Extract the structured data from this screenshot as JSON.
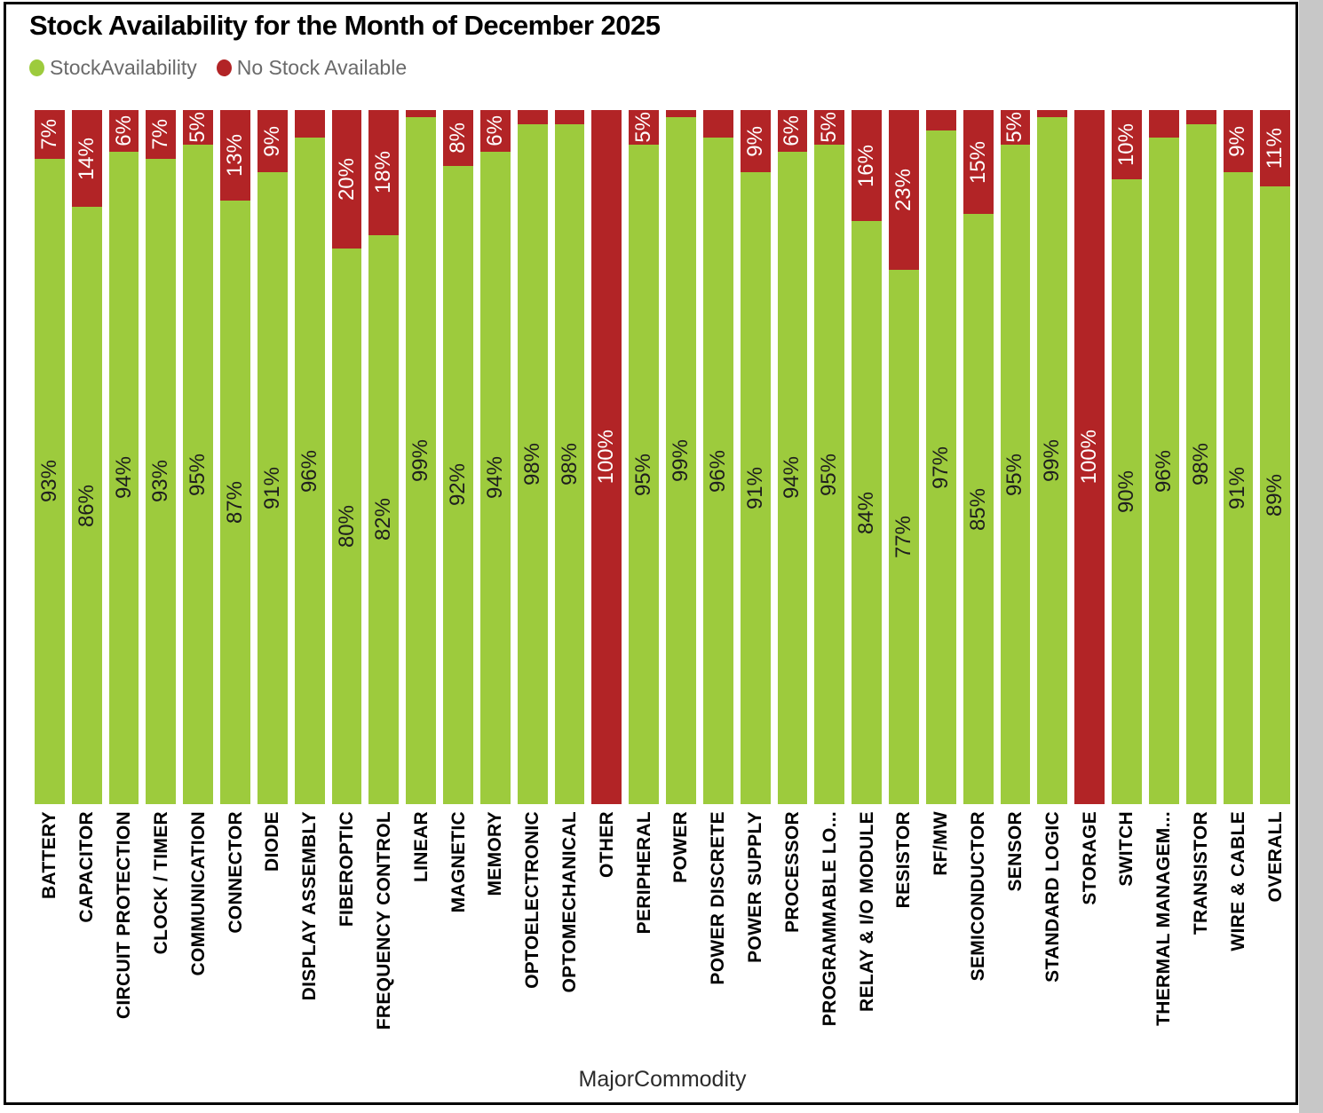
{
  "title": "Stock Availability for the Month of December 2025",
  "legend": {
    "items": [
      {
        "label": "StockAvailability",
        "color": "#9DCB3D"
      },
      {
        "label": "No Stock Available",
        "color": "#B22426"
      }
    ]
  },
  "axis": {
    "x_title": "MajorCommodity"
  },
  "chart_data": {
    "type": "bar",
    "stacked": true,
    "percent_stacked": true,
    "title": "Stock Availability for the Month of December 2025",
    "xlabel": "MajorCommodity",
    "ylabel": "",
    "ylim": [
      0,
      100
    ],
    "grid": false,
    "legend_position": "top-left",
    "categories": [
      "BATTERY",
      "CAPACITOR",
      "CIRCUIT PROTECTION",
      "CLOCK / TIMER",
      "COMMUNICATION",
      "CONNECTOR",
      "DIODE",
      "DISPLAY ASSEMBLY",
      "FIBEROPTIC",
      "FREQUENCY CONTROL",
      "LINEAR",
      "MAGNETIC",
      "MEMORY",
      "OPTOELECTRONIC",
      "OPTOMECHANICAL",
      "OTHER",
      "PERIPHERAL",
      "POWER",
      "POWER DISCRETE",
      "POWER SUPPLY",
      "PROCESSOR",
      "PROGRAMMABLE LO...",
      "RELAY & I/O MODULE",
      "RESISTOR",
      "RF/MW",
      "SEMICONDUCTOR",
      "SENSOR",
      "STANDARD LOGIC",
      "STORAGE",
      "SWITCH",
      "THERMAL MANAGEM...",
      "TRANSISTOR",
      "WIRE & CABLE",
      "OVERALL"
    ],
    "series": [
      {
        "name": "StockAvailability",
        "color": "#9DCB3D",
        "label_color": "#1e1e1e",
        "values": [
          93,
          86,
          94,
          93,
          95,
          87,
          91,
          96,
          80,
          82,
          99,
          92,
          94,
          98,
          98,
          0,
          95,
          99,
          96,
          91,
          94,
          95,
          84,
          77,
          97,
          85,
          95,
          99,
          0,
          90,
          96,
          98,
          91,
          89
        ]
      },
      {
        "name": "No Stock Available",
        "color": "#B22426",
        "label_color": "#ffffff",
        "values": [
          7,
          14,
          6,
          7,
          5,
          13,
          9,
          4,
          20,
          18,
          1,
          8,
          6,
          2,
          2,
          100,
          5,
          1,
          4,
          9,
          6,
          5,
          16,
          23,
          3,
          15,
          5,
          1,
          100,
          10,
          4,
          2,
          9,
          11
        ]
      }
    ],
    "data_label_min_percent": 5
  }
}
